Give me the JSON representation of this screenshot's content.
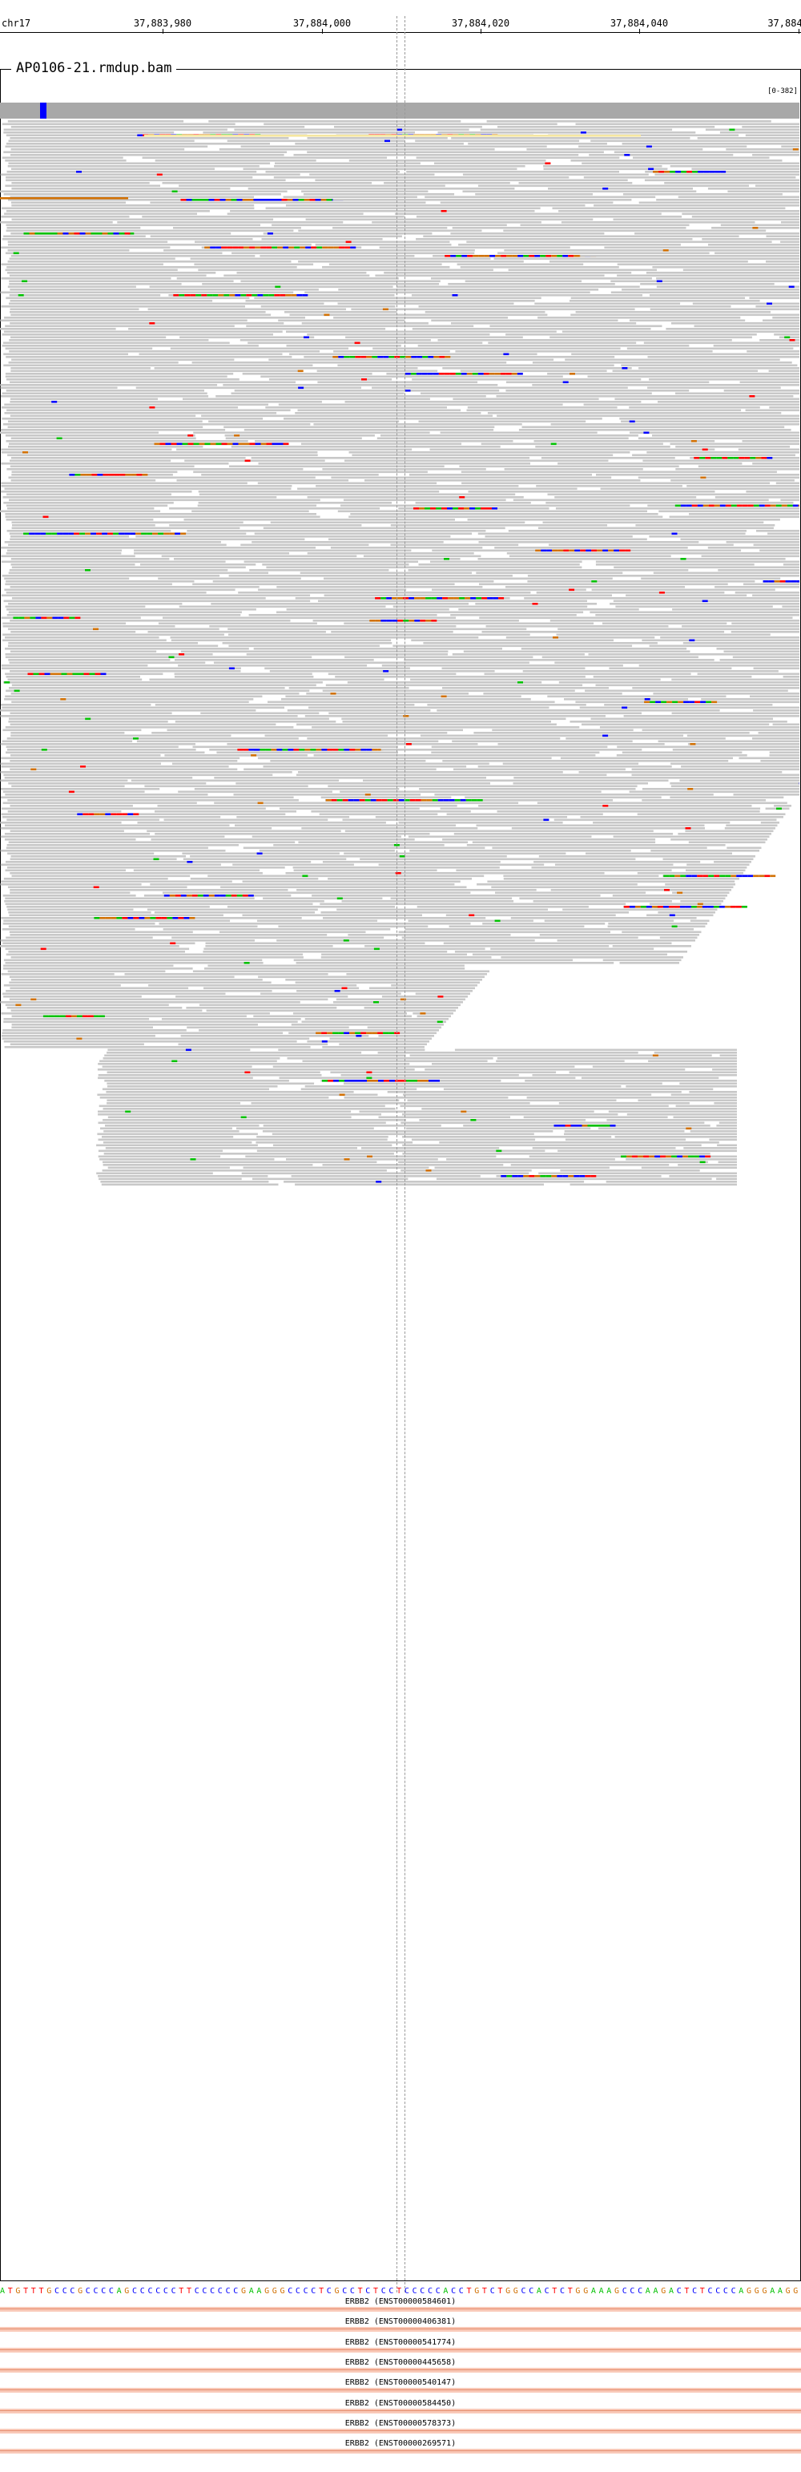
{
  "ruler": {
    "chromosome": "chr17",
    "ticks": [
      "37,883,980",
      "37,884,000",
      "37,884,020",
      "37,884,040",
      "37,884"
    ]
  },
  "track": {
    "title": "AP0106-21.rmdup.bam",
    "coverage_range": "[0-382]"
  },
  "colors": {
    "read": "#c8c8c8",
    "A": "#00c000",
    "C": "#0000ff",
    "G": "#d17105",
    "T": "#ff0000",
    "insertion": "#7b3fbf"
  },
  "reference_sequence": "ATGTTTGCCCGCCCCAGCCCCCCTTCCCCCCGAAGGGCCCCTCGCCTCTCCTCCCCCACCTGTCTGGCCACTCTGGAAAGCCCAAGACTCTCCCCAGGGAAGG",
  "transcripts": [
    "ERBB2 (ENST00000584601)",
    "ERBB2 (ENST00000406381)",
    "ERBB2 (ENST00000541774)",
    "ERBB2 (ENST00000445658)",
    "ERBB2 (ENST00000540147)",
    "ERBB2 (ENST00000584450)",
    "ERBB2 (ENST00000578373)",
    "ERBB2 (ENST00000269571)"
  ]
}
